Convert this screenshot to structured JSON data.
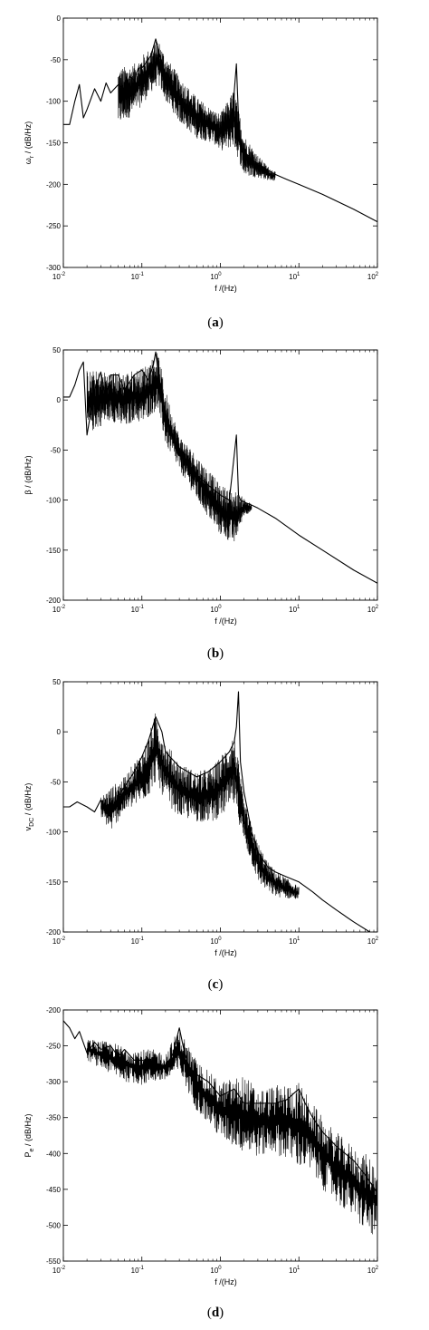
{
  "chart_data": [
    {
      "type": "line",
      "panel_label": "(a)",
      "panel_letter": "a",
      "xlabel": "f /(Hz)",
      "ylabel_main": "ω",
      "ylabel_sub": "r",
      "ylabel_rest": " / (dB/Hz)",
      "xscale": "log",
      "xlim": [
        0.01,
        100
      ],
      "ylim": [
        -300,
        0
      ],
      "x_ticks": [
        {
          "base": "10",
          "exp": "-2",
          "value": 0.01
        },
        {
          "base": "10",
          "exp": "-1",
          "value": 0.1
        },
        {
          "base": "10",
          "exp": "0",
          "value": 1
        },
        {
          "base": "10",
          "exp": "1",
          "value": 10
        },
        {
          "base": "10",
          "exp": "2",
          "value": 100
        }
      ],
      "y_ticks": [
        "-300",
        "-250",
        "-200",
        "-150",
        "-100",
        "-50",
        "0"
      ],
      "grid": false,
      "series": [
        {
          "x": [
            0.01,
            0.012,
            0.014,
            0.016,
            0.018,
            0.02,
            0.025,
            0.03,
            0.035,
            0.04,
            0.05,
            0.06,
            0.07,
            0.08,
            0.09,
            0.1,
            0.11,
            0.12,
            0.13,
            0.14,
            0.15,
            0.16,
            0.18,
            0.2,
            0.25,
            0.3,
            0.4,
            0.5,
            0.6,
            0.7,
            0.8,
            0.9,
            1.0,
            1.2,
            1.4,
            1.6,
            1.7,
            1.8,
            2.0,
            2.5,
            3,
            4,
            5,
            7,
            10,
            20,
            50,
            100
          ],
          "y": [
            -128,
            -128,
            -100,
            -80,
            -120,
            -110,
            -85,
            -100,
            -78,
            -90,
            -80,
            -85,
            -70,
            -75,
            -60,
            -60,
            -55,
            -50,
            -45,
            -35,
            -25,
            -35,
            -55,
            -70,
            -85,
            -95,
            -110,
            -118,
            -125,
            -128,
            -130,
            -132,
            -133,
            -130,
            -125,
            -55,
            -120,
            -150,
            -160,
            -170,
            -175,
            -183,
            -188,
            -194,
            -200,
            -212,
            -230,
            -245
          ],
          "envelope": {
            "x": [
              0.05,
              0.08,
              0.1,
              0.13,
              0.16,
              0.2,
              0.3,
              0.5,
              0.8,
              1.0,
              1.5,
              2.0,
              3.0,
              4.0,
              5.0
            ],
            "low": [
              -130,
              -115,
              -105,
              -90,
              -80,
              -100,
              -125,
              -145,
              -150,
              -160,
              -155,
              -190,
              -192,
              -195,
              -196
            ],
            "high": [
              -60,
              -55,
              -45,
              -35,
              -25,
              -45,
              -70,
              -95,
              -110,
              -115,
              -85,
              -140,
              -165,
              -178,
              -185
            ]
          }
        }
      ]
    },
    {
      "type": "line",
      "panel_label": "(b)",
      "panel_letter": "b",
      "xlabel": "f /(Hz)",
      "ylabel_main": "β",
      "ylabel_sub": "",
      "ylabel_rest": " / (dB/Hz)",
      "xscale": "log",
      "xlim": [
        0.01,
        100
      ],
      "ylim": [
        -200,
        50
      ],
      "x_ticks": [
        {
          "base": "10",
          "exp": "-2",
          "value": 0.01
        },
        {
          "base": "10",
          "exp": "-1",
          "value": 0.1
        },
        {
          "base": "10",
          "exp": "0",
          "value": 1
        },
        {
          "base": "10",
          "exp": "1",
          "value": 10
        },
        {
          "base": "10",
          "exp": "2",
          "value": 100
        }
      ],
      "y_ticks": [
        "-200",
        "-150",
        "-100",
        "-50",
        "0",
        "50"
      ],
      "grid": false,
      "series": [
        {
          "x": [
            0.01,
            0.012,
            0.014,
            0.016,
            0.018,
            0.02,
            0.025,
            0.03,
            0.035,
            0.04,
            0.05,
            0.06,
            0.08,
            0.1,
            0.12,
            0.14,
            0.15,
            0.16,
            0.18,
            0.2,
            0.25,
            0.3,
            0.4,
            0.5,
            0.7,
            1.0,
            1.3,
            1.6,
            1.7,
            1.8,
            2.0,
            2.5,
            3,
            5,
            10,
            20,
            50,
            100
          ],
          "y": [
            3,
            3,
            15,
            30,
            38,
            -35,
            10,
            28,
            0,
            25,
            25,
            10,
            25,
            30,
            20,
            35,
            48,
            30,
            5,
            -20,
            -40,
            -55,
            -65,
            -75,
            -85,
            -95,
            -100,
            -35,
            -95,
            -100,
            -102,
            -105,
            -108,
            -118,
            -135,
            -150,
            -170,
            -183
          ],
          "envelope": {
            "x": [
              0.02,
              0.04,
              0.06,
              0.08,
              0.1,
              0.13,
              0.16,
              0.2,
              0.3,
              0.5,
              0.8,
              1.0,
              1.5,
              2.0,
              2.5
            ],
            "low": [
              -35,
              -20,
              -30,
              -20,
              -25,
              -15,
              -10,
              -45,
              -70,
              -100,
              -125,
              -135,
              -145,
              -115,
              -112
            ],
            "high": [
              30,
              28,
              28,
              30,
              32,
              40,
              48,
              10,
              -35,
              -55,
              -75,
              -85,
              -90,
              -98,
              -104
            ]
          }
        }
      ]
    },
    {
      "type": "line",
      "panel_label": "(c)",
      "panel_letter": "c",
      "xlabel": "f /(Hz)",
      "ylabel_main": "v",
      "ylabel_sub": "DC",
      "ylabel_rest": " / (dB/Hz)",
      "xscale": "log",
      "xlim": [
        0.01,
        100
      ],
      "ylim": [
        -200,
        50
      ],
      "x_ticks": [
        {
          "base": "10",
          "exp": "-2",
          "value": 0.01
        },
        {
          "base": "10",
          "exp": "-1",
          "value": 0.1
        },
        {
          "base": "10",
          "exp": "0",
          "value": 1
        },
        {
          "base": "10",
          "exp": "1",
          "value": 10
        },
        {
          "base": "10",
          "exp": "2",
          "value": 100
        }
      ],
      "y_ticks": [
        "-200",
        "-150",
        "-100",
        "-50",
        "0",
        "50"
      ],
      "grid": false,
      "series": [
        {
          "x": [
            0.01,
            0.012,
            0.015,
            0.02,
            0.025,
            0.03,
            0.035,
            0.04,
            0.05,
            0.06,
            0.08,
            0.1,
            0.12,
            0.15,
            0.18,
            0.2,
            0.3,
            0.5,
            0.7,
            1.0,
            1.3,
            1.5,
            1.6,
            1.7,
            1.8,
            2.0,
            2.5,
            3,
            4,
            5,
            7,
            10,
            15,
            20,
            30,
            50,
            80
          ],
          "y": [
            -75,
            -75,
            -70,
            -75,
            -80,
            -68,
            -80,
            -85,
            -65,
            -55,
            -40,
            -25,
            -10,
            15,
            0,
            -20,
            -35,
            -45,
            -40,
            -30,
            -20,
            -10,
            5,
            40,
            -30,
            -60,
            -100,
            -120,
            -135,
            -140,
            -145,
            -150,
            -160,
            -168,
            -178,
            -190,
            -200
          ],
          "envelope": {
            "x": [
              0.03,
              0.04,
              0.06,
              0.08,
              0.1,
              0.12,
              0.15,
              0.2,
              0.3,
              0.5,
              0.8,
              1.0,
              1.5,
              2.0,
              3.0,
              4.0,
              5.0,
              10.0
            ],
            "low": [
              -85,
              -100,
              -80,
              -75,
              -70,
              -65,
              -50,
              -70,
              -85,
              -90,
              -90,
              -85,
              -75,
              -110,
              -150,
              -160,
              -165,
              -168
            ],
            "high": [
              -65,
              -55,
              -45,
              -30,
              -20,
              -5,
              20,
              -10,
              -30,
              -40,
              -35,
              -25,
              0,
              -70,
              -110,
              -130,
              -138,
              -155
            ]
          }
        }
      ]
    },
    {
      "type": "line",
      "panel_label": "(d)",
      "panel_letter": "d",
      "xlabel": "f /(Hz)",
      "ylabel_main": "P",
      "ylabel_sub": "e",
      "ylabel_rest": " / (dB/Hz)",
      "xscale": "log",
      "xlim": [
        0.01,
        100
      ],
      "ylim": [
        -550,
        -200
      ],
      "x_ticks": [
        {
          "base": "10",
          "exp": "-2",
          "value": 0.01
        },
        {
          "base": "10",
          "exp": "-1",
          "value": 0.1
        },
        {
          "base": "10",
          "exp": "0",
          "value": 1
        },
        {
          "base": "10",
          "exp": "1",
          "value": 10
        },
        {
          "base": "10",
          "exp": "2",
          "value": 100
        }
      ],
      "y_ticks": [
        "-550",
        "-500",
        "-450",
        "-400",
        "-350",
        "-300",
        "-250",
        "-200"
      ],
      "grid": false,
      "series": [
        {
          "x": [
            0.01,
            0.012,
            0.014,
            0.016,
            0.02,
            0.025,
            0.03,
            0.04,
            0.05,
            0.06,
            0.08,
            0.1,
            0.15,
            0.2,
            0.25,
            0.3,
            0.35,
            0.4,
            0.5,
            0.7,
            1.0,
            1.5,
            2.0,
            3.0,
            5.0,
            7.0,
            10.0,
            12.0,
            15.0,
            20.0,
            30.0,
            50.0,
            70.0,
            100.0
          ],
          "y": [
            -215,
            -225,
            -240,
            -230,
            -260,
            -245,
            -255,
            -250,
            -265,
            -255,
            -270,
            -270,
            -275,
            -280,
            -260,
            -225,
            -260,
            -280,
            -290,
            -300,
            -320,
            -310,
            -330,
            -330,
            -330,
            -325,
            -310,
            -330,
            -350,
            -370,
            -390,
            -410,
            -430,
            -455
          ],
          "envelope": {
            "x": [
              0.02,
              0.04,
              0.06,
              0.1,
              0.15,
              0.2,
              0.3,
              0.5,
              1.0,
              2.0,
              3.0,
              5.0,
              10.0,
              15.0,
              20.0,
              30.0,
              50.0,
              70.0,
              100.0
            ],
            "low": [
              -270,
              -290,
              -300,
              -305,
              -300,
              -300,
              -290,
              -340,
              -380,
              -400,
              -405,
              -400,
              -420,
              -430,
              -450,
              -470,
              -490,
              -510,
              -520
            ],
            "high": [
              -240,
              -245,
              -250,
              -255,
              -255,
              -260,
              -225,
              -270,
              -300,
              -290,
              -310,
              -305,
              -300,
              -330,
              -350,
              -370,
              -390,
              -400,
              -415
            ]
          }
        }
      ]
    }
  ]
}
